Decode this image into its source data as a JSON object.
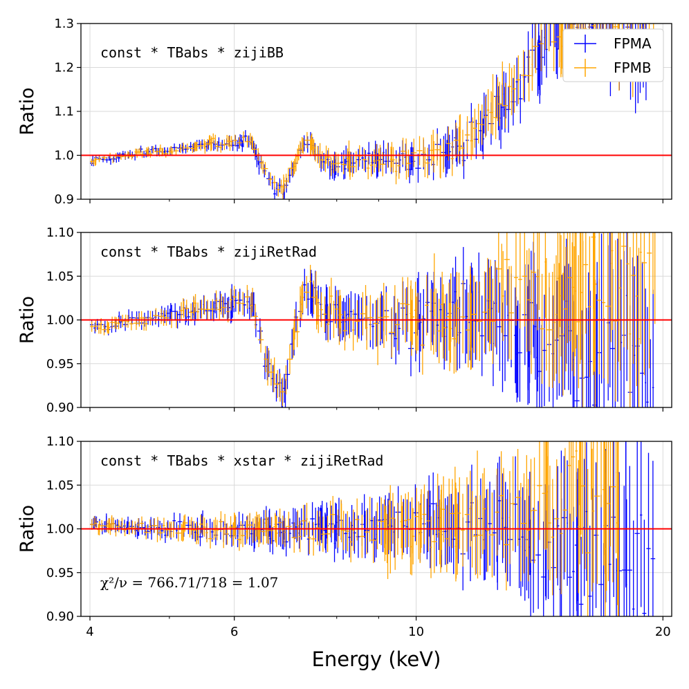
{
  "chart_data": [
    {
      "type": "scatter",
      "title": "",
      "xlabel": "",
      "ylabel": "Ratio",
      "xscale": "log",
      "xlim": [
        3.9,
        20.5
      ],
      "ylim": [
        0.9,
        1.3
      ],
      "yticks": [
        0.9,
        1.0,
        1.1,
        1.2,
        1.3
      ],
      "ytick_labels": [
        "0.9",
        "1.0",
        "1.1",
        "1.2",
        "1.3"
      ],
      "reference_line": 1.0,
      "model_label": "const * TBabs * zijiBB",
      "series": [
        {
          "name": "FPMA",
          "color": "#0000ff",
          "features": [
            [
              4.0,
              0.985
            ],
            [
              4.6,
              1.005
            ],
            [
              5.0,
              1.01
            ],
            [
              5.6,
              1.025
            ],
            [
              6.0,
              1.03
            ],
            [
              6.3,
              1.03
            ],
            [
              6.45,
              0.98
            ],
            [
              6.6,
              0.95
            ],
            [
              6.75,
              0.925
            ],
            [
              6.9,
              0.92
            ],
            [
              7.05,
              0.96
            ],
            [
              7.25,
              1.02
            ],
            [
              7.4,
              1.03
            ],
            [
              7.6,
              1.0
            ],
            [
              7.9,
              0.97
            ],
            [
              8.3,
              0.985
            ],
            [
              9.0,
              0.99
            ],
            [
              10.0,
              0.985
            ],
            [
              10.8,
              1.0
            ],
            [
              11.5,
              1.03
            ],
            [
              12.2,
              1.07
            ],
            [
              13.0,
              1.13
            ],
            [
              13.8,
              1.2
            ],
            [
              14.5,
              1.26
            ],
            [
              15.2,
              1.3
            ]
          ]
        },
        {
          "name": "FPMB",
          "color": "#ffa500",
          "features": [
            [
              4.0,
              0.985
            ],
            [
              4.6,
              1.005
            ],
            [
              5.0,
              1.01
            ],
            [
              5.6,
              1.025
            ],
            [
              6.0,
              1.03
            ],
            [
              6.3,
              1.035
            ],
            [
              6.45,
              0.985
            ],
            [
              6.6,
              0.955
            ],
            [
              6.75,
              0.93
            ],
            [
              6.9,
              0.925
            ],
            [
              7.05,
              0.965
            ],
            [
              7.25,
              1.02
            ],
            [
              7.4,
              1.035
            ],
            [
              7.6,
              1.0
            ],
            [
              7.9,
              0.975
            ],
            [
              8.3,
              0.99
            ],
            [
              9.0,
              0.99
            ],
            [
              10.0,
              0.99
            ],
            [
              10.8,
              1.0
            ],
            [
              11.5,
              1.04
            ],
            [
              12.2,
              1.08
            ],
            [
              13.0,
              1.14
            ],
            [
              13.8,
              1.22
            ],
            [
              14.5,
              1.28
            ],
            [
              15.2,
              1.3
            ]
          ]
        }
      ]
    },
    {
      "type": "scatter",
      "title": "",
      "xlabel": "",
      "ylabel": "Ratio",
      "xscale": "log",
      "xlim": [
        3.9,
        20.5
      ],
      "ylim": [
        0.9,
        1.1
      ],
      "yticks": [
        0.9,
        0.95,
        1.0,
        1.05,
        1.1
      ],
      "ytick_labels": [
        "0.90",
        "0.95",
        "1.00",
        "1.05",
        "1.10"
      ],
      "reference_line": 1.0,
      "model_label": "const * TBabs * zijiRetRad",
      "series": [
        {
          "name": "FPMA",
          "color": "#0000ff",
          "features": [
            [
              4.0,
              0.99
            ],
            [
              4.6,
              1.0
            ],
            [
              5.0,
              1.005
            ],
            [
              5.6,
              1.015
            ],
            [
              6.0,
              1.02
            ],
            [
              6.3,
              1.02
            ],
            [
              6.45,
              0.975
            ],
            [
              6.6,
              0.945
            ],
            [
              6.75,
              0.92
            ],
            [
              6.9,
              0.915
            ],
            [
              7.05,
              0.96
            ],
            [
              7.25,
              1.025
            ],
            [
              7.4,
              1.035
            ],
            [
              7.6,
              1.015
            ],
            [
              8.0,
              1.005
            ],
            [
              9.0,
              1.0
            ],
            [
              10.0,
              1.0
            ],
            [
              11.0,
              1.0
            ],
            [
              12.0,
              1.0
            ],
            [
              14.0,
              0.98
            ],
            [
              16.0,
              0.96
            ],
            [
              18.5,
              0.96
            ]
          ]
        },
        {
          "name": "FPMB",
          "color": "#ffa500",
          "features": [
            [
              4.0,
              0.99
            ],
            [
              4.6,
              1.0
            ],
            [
              5.0,
              1.005
            ],
            [
              5.6,
              1.015
            ],
            [
              6.0,
              1.02
            ],
            [
              6.3,
              1.022
            ],
            [
              6.45,
              0.98
            ],
            [
              6.6,
              0.95
            ],
            [
              6.75,
              0.925
            ],
            [
              6.9,
              0.92
            ],
            [
              7.05,
              0.965
            ],
            [
              7.25,
              1.025
            ],
            [
              7.4,
              1.035
            ],
            [
              7.6,
              1.015
            ],
            [
              8.0,
              1.005
            ],
            [
              9.0,
              1.0
            ],
            [
              10.0,
              1.0
            ],
            [
              11.0,
              1.0
            ],
            [
              12.0,
              1.01
            ],
            [
              14.0,
              1.03
            ],
            [
              16.0,
              1.04
            ],
            [
              18.5,
              1.03
            ]
          ]
        }
      ]
    },
    {
      "type": "scatter",
      "title": "",
      "xlabel": "Energy (keV)",
      "ylabel": "Ratio",
      "xscale": "log",
      "xlim": [
        3.9,
        20.5
      ],
      "ylim": [
        0.9,
        1.1
      ],
      "yticks": [
        0.9,
        0.95,
        1.0,
        1.05,
        1.1
      ],
      "ytick_labels": [
        "0.90",
        "0.95",
        "1.00",
        "1.05",
        "1.10"
      ],
      "xticks": [
        4,
        6,
        10,
        20
      ],
      "xtick_labels": [
        "4",
        "6",
        "10",
        "20"
      ],
      "reference_line": 1.0,
      "model_label": "const * TBabs * xstar * zijiRetRad",
      "annotation": "χ²/ν = 766.71/718 = 1.07",
      "series": [
        {
          "name": "FPMA",
          "color": "#0000ff",
          "features": [
            [
              4.0,
              1.005
            ],
            [
              5.0,
              1.0
            ],
            [
              6.0,
              1.0
            ],
            [
              7.0,
              1.0
            ],
            [
              8.0,
              1.0
            ],
            [
              10.0,
              1.0
            ],
            [
              12.0,
              1.0
            ],
            [
              14.0,
              0.99
            ],
            [
              16.0,
              0.965
            ],
            [
              18.5,
              0.97
            ]
          ]
        },
        {
          "name": "FPMB",
          "color": "#ffa500",
          "features": [
            [
              4.0,
              1.005
            ],
            [
              5.0,
              1.0
            ],
            [
              6.0,
              1.0
            ],
            [
              7.0,
              1.0
            ],
            [
              8.0,
              1.0
            ],
            [
              10.0,
              1.0
            ],
            [
              12.0,
              1.01
            ],
            [
              14.0,
              1.03
            ],
            [
              16.0,
              1.04
            ],
            [
              18.5,
              1.02
            ]
          ]
        }
      ]
    }
  ],
  "legend": {
    "placement": "top-right",
    "items": [
      {
        "label": "FPMA",
        "color": "#0000ff"
      },
      {
        "label": "FPMB",
        "color": "#ffa500"
      }
    ]
  },
  "colors": {
    "reference_line": "#ff0000",
    "grid": "#d9d9d9"
  }
}
